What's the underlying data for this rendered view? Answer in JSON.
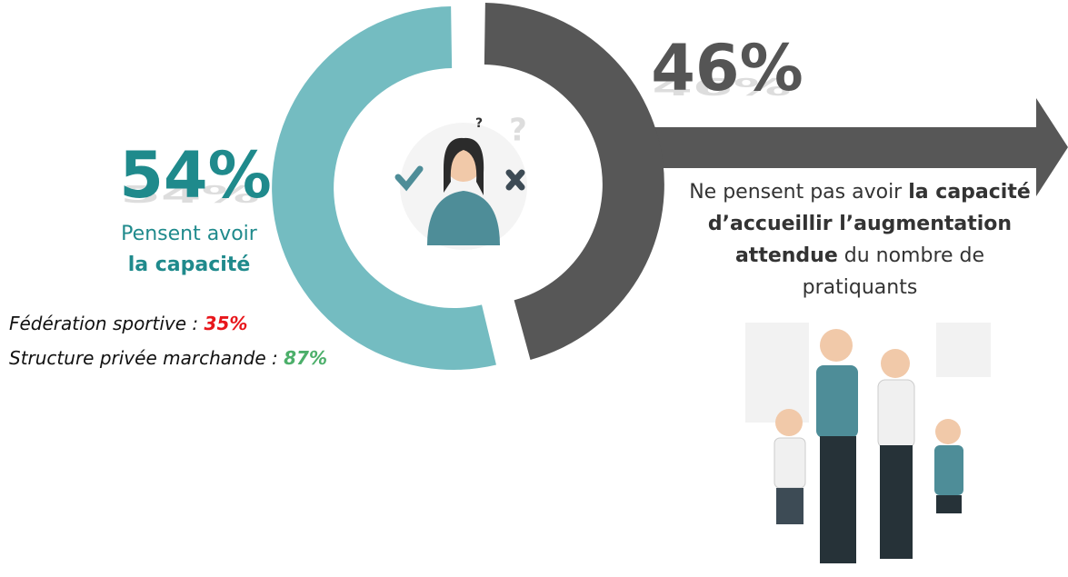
{
  "chart_data": {
    "type": "donut",
    "values": [
      54,
      46
    ],
    "value_labels": [
      "54%",
      "46%"
    ],
    "colors": [
      "#74bcc1",
      "#575757"
    ],
    "label_colors": [
      "#1f8a8c",
      "#555555"
    ],
    "captions": [
      [
        [
          {
            "text": "Pensent avoir",
            "bold": false
          }
        ],
        [
          {
            "text": "la capacité",
            "bold": true
          }
        ]
      ],
      [
        [
          {
            "text": "Ne pensent pas avoir ",
            "bold": false
          },
          {
            "text": "la capacité",
            "bold": true
          }
        ],
        [
          {
            "text": "d’accueillir l’augmentation",
            "bold": true
          }
        ],
        [
          {
            "text": "attendue",
            "bold": true
          },
          {
            "text": " du nombre de",
            "bold": false
          }
        ],
        [
          {
            "text": "pratiquants",
            "bold": false
          }
        ]
      ]
    ],
    "breakdown": [
      {
        "label": "Fédération sportive : ",
        "value_label": "35%",
        "color": "#e8161b"
      },
      {
        "label": "Structure privée marchande : ",
        "value_label": "87%",
        "color": "#4caf6a"
      }
    ]
  }
}
